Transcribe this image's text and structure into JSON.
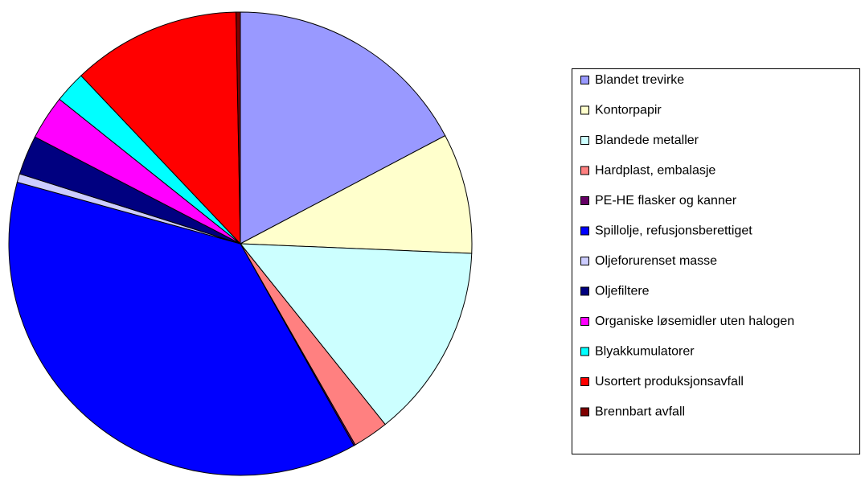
{
  "chart_data": {
    "type": "pie",
    "categories": [
      "Blandet trevirke",
      "Kontorpapir",
      "Blandede metaller",
      "Hardplast, embalasje",
      "PE-HE flasker og kanner",
      "Spillolje, refusjonsberettiget",
      "Oljeforurenset masse",
      "Oljefiltere",
      "Organiske løsemidler uten halogen",
      "Blyakkumulatorer",
      "Usortert produksjonsavfall",
      "Brennbart avfall"
    ],
    "values": [
      17.3,
      8.4,
      13.6,
      2.5,
      0.1,
      37.5,
      0.6,
      2.75,
      3.1,
      2.2,
      11.8,
      0.3
    ],
    "colors": [
      "#9999FF",
      "#FFFFCC",
      "#CCFFFF",
      "#FF8080",
      "#660066",
      "#0000FF",
      "#CCCCFF",
      "#000080",
      "#FF00FF",
      "#00FFFF",
      "#FF0000",
      "#800000"
    ],
    "legend": "right"
  }
}
